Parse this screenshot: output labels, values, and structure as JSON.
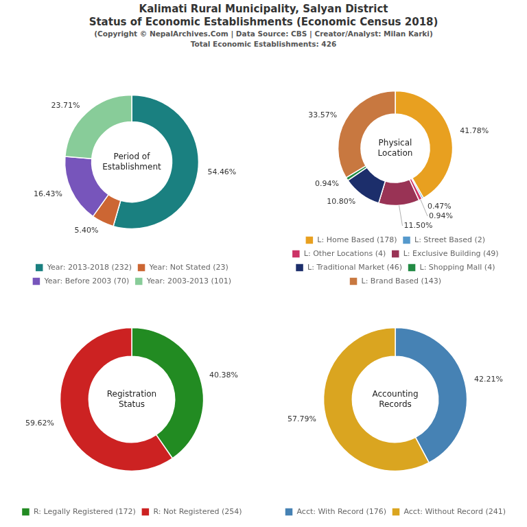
{
  "chart_data": [
    {
      "type": "doughnut",
      "title": [
        "Kalimati Rural Municipality, Salyan District",
        "Status of Economic Establishments (Economic Census 2018)"
      ],
      "subtitle": [
        "(Copyright © NepalArchives.Com | Data Source: CBS | Creator/Analyst: Milan Karki)",
        "Total Economic Establishments: 426"
      ],
      "annotations": [
        "Period of\nEstablishment"
      ],
      "categories": [
        "Year: 2013-2018 (232)",
        "Year: Not Stated (23)",
        "Year: Before 2003 (70)",
        "Year: 2003-2013 (101)"
      ],
      "values": [
        54.46,
        5.4,
        16.43,
        23.71
      ],
      "value_labels": [
        "54.46%",
        "5.40%",
        "16.43%",
        "23.71%"
      ],
      "colors": [
        "#1A8080",
        "#CC6633",
        "#7755BB",
        "#88CC99"
      ],
      "data_labels": true,
      "legend": "bottom"
    },
    {
      "type": "doughnut",
      "annotations": [
        "Physical\nLocation"
      ],
      "categories": [
        "L: Home Based (178)",
        "L: Street Based (2)",
        "L: Other Locations (4)",
        "L: Exclusive Building (49)",
        "L: Traditional Market (46)",
        "L: Shopping Mall (4)",
        "L: Brand Based (143)"
      ],
      "values": [
        41.78,
        0.47,
        0.94,
        11.5,
        10.8,
        0.94,
        33.57
      ],
      "value_labels": [
        "41.78%",
        "0.47%",
        "0.94%",
        "11.50%",
        "10.80%",
        "0.94%",
        "33.57%"
      ],
      "colors": [
        "#E8A020",
        "#5599CC",
        "#CC3366",
        "#993355",
        "#1C2E6B",
        "#228B44",
        "#C87840"
      ],
      "data_labels": true,
      "legend": "bottom"
    },
    {
      "type": "doughnut",
      "annotations": [
        "Registration\nStatus"
      ],
      "categories": [
        "R: Legally Registered (172)",
        "R: Not Registered (254)"
      ],
      "values": [
        40.38,
        59.62
      ],
      "value_labels": [
        "40.38%",
        "59.62%"
      ],
      "colors": [
        "#228B22",
        "#CC2222"
      ],
      "data_labels": true,
      "legend": "bottom"
    },
    {
      "type": "doughnut",
      "annotations": [
        "Accounting\nRecords"
      ],
      "categories": [
        "Acct: With Record (176)",
        "Acct: Without Record (241)"
      ],
      "values": [
        42.21,
        57.79
      ],
      "value_labels": [
        "42.21%",
        "57.79%"
      ],
      "colors": [
        "#4682B4",
        "#DAA520"
      ],
      "data_labels": true,
      "legend": "bottom"
    }
  ]
}
